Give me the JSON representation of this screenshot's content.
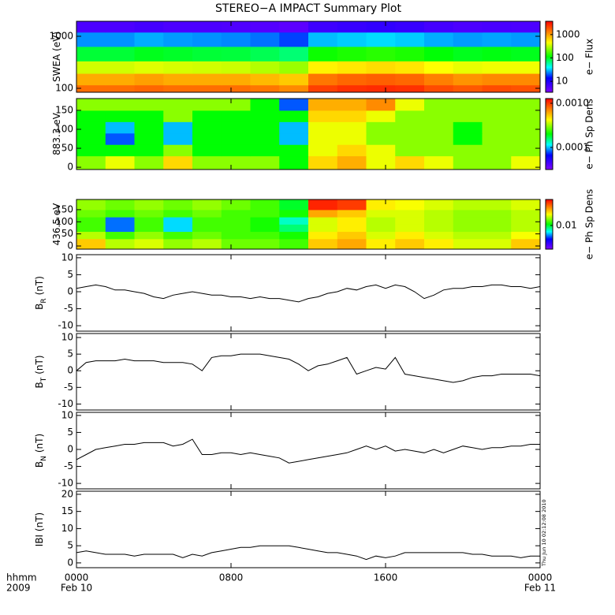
{
  "title": "STEREO−A IMPACT Summary Plot",
  "chart_data": [
    {
      "type": "heatmap",
      "ylabel": "SWEA (eV)",
      "ylog": true,
      "ylim": [
        84,
        1940
      ],
      "yticks": [
        100,
        1000
      ],
      "xlim": [
        0,
        24
      ],
      "x": [
        0.75,
        2.25,
        3.75,
        5.25,
        6.75,
        8.25,
        9.75,
        11.25,
        12.75,
        14.25,
        15.75,
        17.25,
        18.75,
        20.25,
        21.75,
        23.25
      ],
      "y": [
        90,
        150,
        250,
        450,
        900,
        1600
      ],
      "z": [
        [
          1500,
          1500,
          1600,
          1500,
          1500,
          1500,
          1400,
          1200,
          2200,
          2500,
          2600,
          2500,
          2000,
          1800,
          2000,
          1900
        ],
        [
          900,
          900,
          1000,
          900,
          900,
          900,
          800,
          700,
          1400,
          1600,
          1700,
          1600,
          1300,
          1100,
          1200,
          1200
        ],
        [
          350,
          350,
          380,
          360,
          350,
          340,
          300,
          260,
          500,
          550,
          600,
          560,
          450,
          400,
          420,
          420
        ],
        [
          90,
          90,
          100,
          95,
          90,
          88,
          80,
          70,
          120,
          130,
          140,
          130,
          110,
          100,
          105,
          100
        ],
        [
          25,
          25,
          28,
          26,
          25,
          24,
          22,
          18,
          30,
          32,
          34,
          32,
          28,
          26,
          27,
          26
        ],
        [
          6,
          6,
          6.5,
          6,
          6,
          5.8,
          5.5,
          5,
          7,
          7.5,
          8,
          7.5,
          6.5,
          6,
          6.2,
          6
        ]
      ],
      "colormap": "rainbow",
      "zlog": true,
      "zlim": [
        3.4,
        3700
      ],
      "zticks": [
        10,
        100,
        1000
      ],
      "zlabel": "e− Flux"
    },
    {
      "type": "heatmap",
      "ylabel": "883.3 eV",
      "ylim": [
        -6,
        181
      ],
      "yticks": [
        0,
        50,
        100,
        150
      ],
      "xlim": [
        0,
        24
      ],
      "x": [
        0.75,
        2.25,
        3.75,
        5.25,
        6.75,
        8.25,
        9.75,
        11.25,
        12.75,
        14.25,
        15.75,
        17.25,
        18.75,
        20.25,
        21.75,
        23.25
      ],
      "y": [
        15,
        45,
        75,
        105,
        135,
        165
      ],
      "z": [
        [
          0.0003,
          0.0004,
          0.0003,
          0.0005,
          0.0003,
          0.0003,
          0.0003,
          0.0002,
          0.0005,
          0.0006,
          0.0004,
          0.0005,
          0.0004,
          0.0003,
          0.0003,
          0.0004
        ],
        [
          0.0002,
          0.0002,
          0.0002,
          0.0003,
          0.0002,
          0.0002,
          0.0002,
          0.0002,
          0.0004,
          0.0005,
          0.0004,
          0.0003,
          0.0003,
          0.0003,
          0.0003,
          0.0003
        ],
        [
          0.0002,
          8e-05,
          0.0002,
          0.0001,
          0.0002,
          0.0002,
          0.0002,
          0.0001,
          0.0004,
          0.0004,
          0.0003,
          0.0003,
          0.0003,
          0.0002,
          0.0003,
          0.0003
        ],
        [
          0.0002,
          0.0001,
          0.0002,
          0.0001,
          0.0002,
          0.0002,
          0.0002,
          0.0001,
          0.0004,
          0.0004,
          0.0003,
          0.0003,
          0.0003,
          0.0002,
          0.0003,
          0.0003
        ],
        [
          0.0002,
          0.0002,
          0.0002,
          0.0003,
          0.0002,
          0.0002,
          0.0002,
          0.0002,
          0.0005,
          0.0005,
          0.0004,
          0.0003,
          0.0003,
          0.0003,
          0.0003,
          0.0003
        ],
        [
          0.0003,
          0.0003,
          0.0003,
          0.0003,
          0.0003,
          0.0003,
          0.0002,
          8e-05,
          0.0006,
          0.0006,
          0.0007,
          0.0004,
          0.0003,
          0.0003,
          0.0003,
          0.0003
        ]
      ],
      "colormap": "rainbow",
      "zlog": true,
      "zlim": [
        3.16e-05,
        0.00128
      ],
      "zticks": [
        {
          "value": 0.001,
          "label": "0.0010"
        },
        0.0001
      ],
      "zlabel": "e− Ph Sp Dens"
    },
    {
      "type": "heatmap",
      "ylabel": "436.5 eV",
      "ylim": [
        -13,
        192
      ],
      "yticks": [
        0,
        50,
        100,
        150
      ],
      "xlim": [
        0,
        24
      ],
      "x": [
        0.75,
        2.25,
        3.75,
        5.25,
        6.75,
        8.25,
        9.75,
        11.25,
        12.75,
        14.25,
        15.75,
        17.25,
        18.75,
        20.25,
        21.75,
        23.25
      ],
      "y": [
        15,
        45,
        75,
        105,
        135,
        165
      ],
      "z": [
        [
          0.02,
          0.015,
          0.016,
          0.014,
          0.015,
          0.013,
          0.013,
          0.012,
          0.02,
          0.022,
          0.018,
          0.02,
          0.018,
          0.016,
          0.016,
          0.02
        ],
        [
          0.015,
          0.012,
          0.014,
          0.012,
          0.013,
          0.012,
          0.012,
          0.011,
          0.018,
          0.02,
          0.016,
          0.018,
          0.016,
          0.015,
          0.015,
          0.017
        ],
        [
          0.012,
          0.006,
          0.012,
          0.007,
          0.012,
          0.012,
          0.011,
          0.009,
          0.016,
          0.018,
          0.015,
          0.016,
          0.015,
          0.014,
          0.014,
          0.015
        ],
        [
          0.012,
          0.006,
          0.012,
          0.007,
          0.012,
          0.012,
          0.011,
          0.008,
          0.016,
          0.018,
          0.015,
          0.016,
          0.015,
          0.014,
          0.014,
          0.015
        ],
        [
          0.013,
          0.012,
          0.013,
          0.012,
          0.013,
          0.012,
          0.012,
          0.011,
          0.022,
          0.02,
          0.016,
          0.016,
          0.015,
          0.014,
          0.014,
          0.015
        ],
        [
          0.014,
          0.013,
          0.014,
          0.013,
          0.014,
          0.013,
          0.012,
          0.01,
          0.032,
          0.03,
          0.018,
          0.017,
          0.016,
          0.015,
          0.015,
          0.016
        ]
      ],
      "colormap": "rainbow",
      "zlog": true,
      "zlim": [
        0.00316,
        0.0355
      ],
      "zticks": [
        0.01
      ],
      "zlabel": "e− Ph Sp Dens"
    },
    {
      "type": "line",
      "ylabel": "B",
      "ylabel_sub": "R",
      "ylabel_unit": "(nT)",
      "color": "#000000",
      "ylim": [
        -11.6,
        10.9
      ],
      "yticks": [
        -10,
        -5,
        0,
        5,
        10
      ],
      "xlim": [
        0,
        24
      ],
      "x": [
        0,
        0.5,
        1,
        1.5,
        2,
        2.5,
        3,
        3.5,
        4,
        4.5,
        5,
        5.5,
        6,
        6.5,
        7,
        7.5,
        8,
        8.5,
        9,
        9.5,
        10,
        10.5,
        11,
        11.5,
        12,
        12.5,
        13,
        13.5,
        14,
        14.5,
        15,
        15.5,
        16,
        16.5,
        17,
        17.5,
        18,
        18.5,
        19,
        19.5,
        20,
        20.5,
        21,
        21.5,
        22,
        22.5,
        23,
        23.5,
        24
      ],
      "values": [
        1,
        1.5,
        2,
        1.5,
        0.5,
        0.5,
        0,
        -0.5,
        -1.5,
        -2,
        -1,
        -0.5,
        0,
        -0.5,
        -1,
        -1,
        -1.5,
        -1.5,
        -2,
        -1.5,
        -2,
        -2,
        -2.5,
        -3,
        -2,
        -1.5,
        -0.5,
        0,
        1,
        0.5,
        1.5,
        2,
        1,
        2,
        1.5,
        0,
        -2,
        -1,
        0.5,
        1,
        1,
        1.5,
        1.5,
        2,
        2,
        1.5,
        1.5,
        1,
        1.5
      ]
    },
    {
      "type": "line",
      "ylabel": "B",
      "ylabel_sub": "T",
      "ylabel_unit": "(nT)",
      "color": "#000000",
      "ylim": [
        -11.8,
        11.2
      ],
      "yticks": [
        -10,
        -5,
        0,
        5,
        10
      ],
      "xlim": [
        0,
        24
      ],
      "x": [
        0,
        0.5,
        1,
        1.5,
        2,
        2.5,
        3,
        3.5,
        4,
        4.5,
        5,
        5.5,
        6,
        6.5,
        7,
        7.5,
        8,
        8.5,
        9,
        9.5,
        10,
        10.5,
        11,
        11.5,
        12,
        12.5,
        13,
        13.5,
        14,
        14.5,
        15,
        15.5,
        16,
        16.5,
        17,
        17.5,
        18,
        18.5,
        19,
        19.5,
        20,
        20.5,
        21,
        21.5,
        22,
        22.5,
        23,
        23.5,
        24
      ],
      "values": [
        0,
        2.5,
        3,
        3,
        3,
        3.5,
        3,
        3,
        3,
        2.5,
        2.5,
        2.5,
        2,
        0,
        4,
        4.5,
        4.5,
        5,
        5,
        5,
        4.5,
        4,
        3.5,
        2,
        0,
        1.5,
        2,
        3,
        4,
        -1,
        0,
        1,
        0.5,
        4,
        -1,
        -1.5,
        -2,
        -2.5,
        -3,
        -3.5,
        -3,
        -2,
        -1.5,
        -1.5,
        -1,
        -1,
        -1,
        -1,
        -1.5
      ]
    },
    {
      "type": "line",
      "ylabel": "B",
      "ylabel_sub": "N",
      "ylabel_unit": "(nT)",
      "color": "#000000",
      "ylim": [
        -11.6,
        10.9
      ],
      "yticks": [
        -10,
        -5,
        0,
        5,
        10
      ],
      "xlim": [
        0,
        24
      ],
      "x": [
        0,
        0.5,
        1,
        1.5,
        2,
        2.5,
        3,
        3.5,
        4,
        4.5,
        5,
        5.5,
        6,
        6.5,
        7,
        7.5,
        8,
        8.5,
        9,
        9.5,
        10,
        10.5,
        11,
        11.5,
        12,
        12.5,
        13,
        13.5,
        14,
        14.5,
        15,
        15.5,
        16,
        16.5,
        17,
        17.5,
        18,
        18.5,
        19,
        19.5,
        20,
        20.5,
        21,
        21.5,
        22,
        22.5,
        23,
        23.5,
        24
      ],
      "values": [
        -3,
        -1.5,
        0,
        0.5,
        1,
        1.5,
        1.5,
        2,
        2,
        2,
        1,
        1.5,
        3,
        -1.5,
        -1.5,
        -1,
        -1,
        -1.5,
        -1,
        -1.5,
        -2,
        -2.5,
        -4,
        -3.5,
        -3,
        -2.5,
        -2,
        -1.5,
        -1,
        0,
        1,
        0,
        1,
        -0.5,
        0,
        -0.5,
        -1,
        0,
        -1,
        0,
        1,
        0.5,
        0,
        0.5,
        0.5,
        1,
        1,
        1.5,
        1.5
      ]
    },
    {
      "type": "line",
      "ylabel": "IBI (nT)",
      "color": "#000000",
      "ylim": [
        -1.4,
        20.9
      ],
      "yticks": [
        0,
        5,
        10,
        15,
        20
      ],
      "xlim": [
        0,
        24
      ],
      "x": [
        0,
        0.5,
        1,
        1.5,
        2,
        2.5,
        3,
        3.5,
        4,
        4.5,
        5,
        5.5,
        6,
        6.5,
        7,
        7.5,
        8,
        8.5,
        9,
        9.5,
        10,
        10.5,
        11,
        11.5,
        12,
        12.5,
        13,
        13.5,
        14,
        14.5,
        15,
        15.5,
        16,
        16.5,
        17,
        17.5,
        18,
        18.5,
        19,
        19.5,
        20,
        20.5,
        21,
        21.5,
        22,
        22.5,
        23,
        23.5,
        24
      ],
      "values": [
        3,
        3.5,
        3,
        2.5,
        2.5,
        2.5,
        2,
        2.5,
        2.5,
        2.5,
        2.5,
        1.5,
        2.5,
        2,
        3,
        3.5,
        4,
        4.5,
        4.5,
        5,
        5,
        5,
        5,
        4.5,
        4,
        3.5,
        3,
        3,
        2.5,
        2,
        1,
        2,
        1.5,
        2,
        3,
        3,
        3,
        3,
        3,
        3,
        3,
        2.5,
        2.5,
        2,
        2,
        2,
        1.5,
        2,
        2
      ],
      "xticks": [
        {
          "value": 0,
          "label": "0000"
        },
        {
          "value": 8,
          "label": "0800"
        },
        {
          "value": 16,
          "label": "1600"
        },
        {
          "value": 24,
          "label": "0000"
        }
      ],
      "date_labels": [
        "Feb 10",
        null,
        null,
        "Feb 11"
      ],
      "x_header": [
        "hhmm",
        "2009"
      ],
      "stamp": "Thu Jun 10 02:12:08 2010"
    }
  ]
}
